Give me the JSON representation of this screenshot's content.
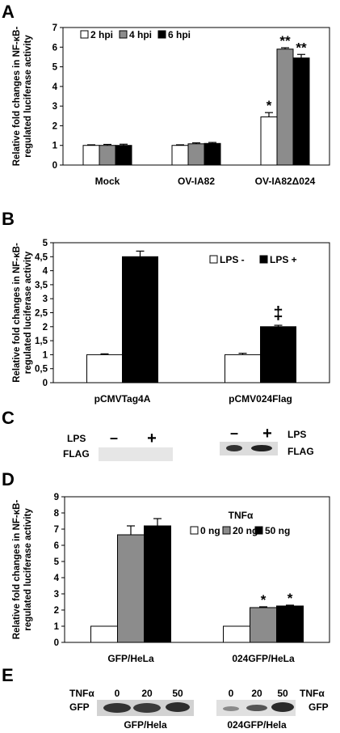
{
  "colors": {
    "white": "#ffffff",
    "grey": "#8c8c8c",
    "black": "#000000",
    "blot_bg": "#e6e6e6"
  },
  "panels": {
    "A": {
      "label": "A"
    },
    "B": {
      "label": "B"
    },
    "C": {
      "label": "C"
    },
    "D": {
      "label": "D"
    },
    "E": {
      "label": "E"
    }
  },
  "chart_data": [
    {
      "id": "A",
      "type": "bar",
      "ylabel": "Relative fold changes in NF-κB-regulated luciferase activity",
      "ylim": [
        0,
        7
      ],
      "yticks": [
        "0",
        "1",
        "2",
        "3",
        "4",
        "5",
        "6",
        "7"
      ],
      "categories": [
        "Mock",
        "OV-IA82",
        "OV-IA82Δ024"
      ],
      "legend_position": "top-left",
      "series": [
        {
          "name": "2 hpi",
          "color": "white",
          "values": [
            1.0,
            1.0,
            2.45
          ],
          "errors": [
            0.03,
            0.03,
            0.22
          ]
        },
        {
          "name": "4 hpi",
          "color": "grey",
          "values": [
            1.0,
            1.08,
            5.9
          ],
          "errors": [
            0.05,
            0.05,
            0.07
          ]
        },
        {
          "name": "6 hpi",
          "color": "black",
          "values": [
            1.0,
            1.1,
            5.45
          ],
          "errors": [
            0.06,
            0.05,
            0.18
          ]
        }
      ],
      "annotations": [
        {
          "category": 2,
          "series": 0,
          "text": "*"
        },
        {
          "category": 2,
          "series": 1,
          "text": "**"
        },
        {
          "category": 2,
          "series": 2,
          "text": "**"
        }
      ]
    },
    {
      "id": "B",
      "type": "bar",
      "ylabel": "Relative fold changes in NF-κB-regulated luciferase activity",
      "ylim": [
        0,
        5
      ],
      "yticks": [
        "0",
        "0,5",
        "1",
        "1,5",
        "2",
        "2,5",
        "3",
        "3,5",
        "4",
        "4,5",
        "5"
      ],
      "categories": [
        "pCMVTag4A",
        "pCMV024Flag"
      ],
      "legend_position": "top-right",
      "series": [
        {
          "name": "LPS -",
          "color": "white",
          "values": [
            1.0,
            1.0
          ],
          "errors": [
            0.03,
            0.05
          ]
        },
        {
          "name": "LPS +",
          "color": "black",
          "values": [
            4.5,
            2.0
          ],
          "errors": [
            0.2,
            0.05
          ]
        }
      ],
      "annotations": [
        {
          "category": 1,
          "series": 1,
          "text": "‡"
        }
      ]
    },
    {
      "id": "D",
      "type": "bar",
      "ylabel": "Relative fold changes in NF-κB-regulated luciferase activity",
      "ylim": [
        0,
        9
      ],
      "yticks": [
        "0",
        "1",
        "2",
        "3",
        "4",
        "5",
        "6",
        "7",
        "8",
        "9"
      ],
      "categories": [
        "GFP/HeLa",
        "024GFP/HeLa"
      ],
      "legend_title": "TNFα",
      "legend_position": "top-right",
      "series": [
        {
          "name": "0 ng",
          "color": "white",
          "values": [
            1.0,
            1.0
          ],
          "errors": [
            0,
            0
          ]
        },
        {
          "name": "20 ng",
          "color": "grey",
          "values": [
            6.65,
            2.15
          ],
          "errors": [
            0.55,
            0.05
          ]
        },
        {
          "name": "50 ng",
          "color": "black",
          "values": [
            7.2,
            2.25
          ],
          "errors": [
            0.45,
            0.05
          ]
        }
      ],
      "annotations": [
        {
          "category": 1,
          "series": 1,
          "text": "*"
        },
        {
          "category": 1,
          "series": 2,
          "text": "*"
        }
      ]
    }
  ],
  "blots": {
    "C": {
      "left": {
        "condition": "LPS",
        "minus": "–",
        "plus": "+",
        "band": "FLAG"
      },
      "right": {
        "condition": "LPS",
        "minus": "–",
        "plus": "+",
        "band": "FLAG"
      }
    },
    "E": {
      "left": {
        "condition": "TNFα",
        "doses": [
          "0",
          "20",
          "50"
        ],
        "band": "GFP",
        "caption": "GFP/Hela"
      },
      "right": {
        "condition": "TNFα",
        "doses": [
          "0",
          "20",
          "50"
        ],
        "band": "GFP",
        "caption": "024GFP/Hela"
      }
    }
  }
}
